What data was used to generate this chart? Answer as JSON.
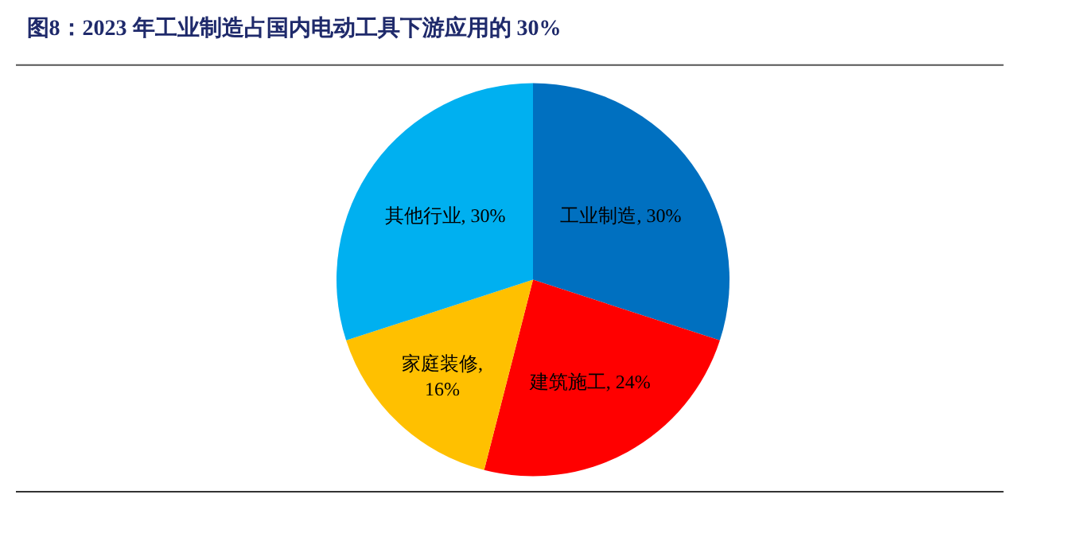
{
  "chart_data": {
    "type": "pie",
    "title": "图8：2023 年工业制造占国内电动工具下游应用的 30%",
    "categories": [
      "工业制造",
      "建筑施工",
      "家庭装修",
      "其他行业"
    ],
    "values": [
      30,
      24,
      16,
      30
    ],
    "colors": [
      "#0070c0",
      "#ff0000",
      "#ffc000",
      "#00b0f0"
    ],
    "value_labels": [
      ", 30%",
      ", 24%",
      ",\n16%",
      ", 30%"
    ],
    "legend": false
  }
}
